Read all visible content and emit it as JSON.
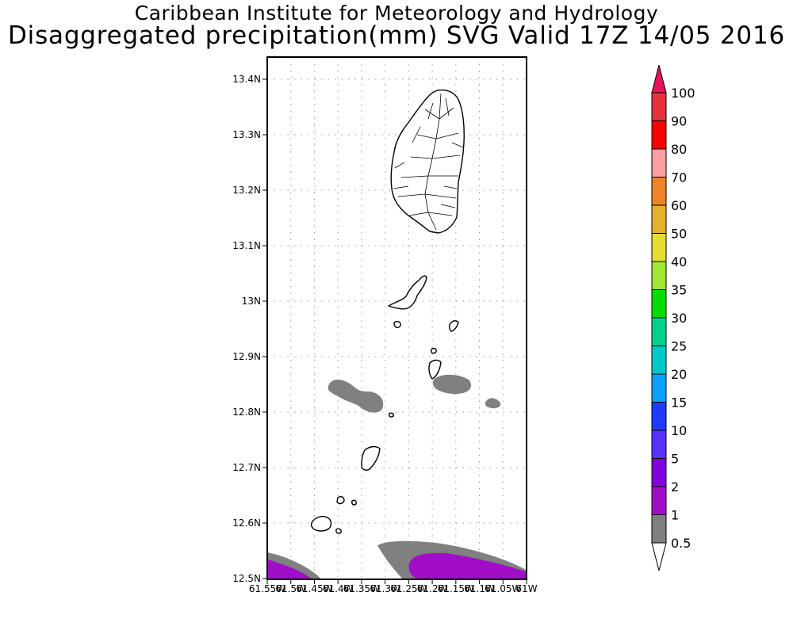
{
  "header": {
    "institute": "Caribbean Institute for Meteorology and Hydrology",
    "product": "Disaggregated precipitation(mm) SVG Valid 17Z 14/05 2016"
  },
  "map": {
    "region": "St. Vincent and the Grenadines",
    "lat_labels": [
      "13.4N",
      "13.3N",
      "13.2N",
      "13.1N",
      "13N",
      "12.9N",
      "12.8N",
      "12.7N",
      "12.6N",
      "12.5N"
    ],
    "lon_labels": [
      "61.55W",
      "61.5W",
      "61.45W",
      "61.4W",
      "61.35W",
      "61.3W",
      "61.25W",
      "61.2W",
      "61.15W",
      "61.1W",
      "61.05W",
      "61W"
    ],
    "grid": "dotted"
  },
  "colorbar": {
    "labels": [
      "0.5",
      "1",
      "2",
      "5",
      "10",
      "15",
      "20",
      "25",
      "30",
      "35",
      "40",
      "50",
      "60",
      "70",
      "80",
      "90",
      "100"
    ],
    "colors": [
      "#808080",
      "#a00ec8",
      "#8200dc",
      "#5a32ff",
      "#1e3cff",
      "#0aa0ff",
      "#00c8c8",
      "#00d28c",
      "#00dc00",
      "#a0e632",
      "#e6dc32",
      "#e6af2d",
      "#f08228",
      "#faa0a0",
      "#ff0000",
      "#e6323c",
      "#e6145a"
    ]
  },
  "shading": {
    "gray": "#808080",
    "purple": "#a00ec8"
  }
}
